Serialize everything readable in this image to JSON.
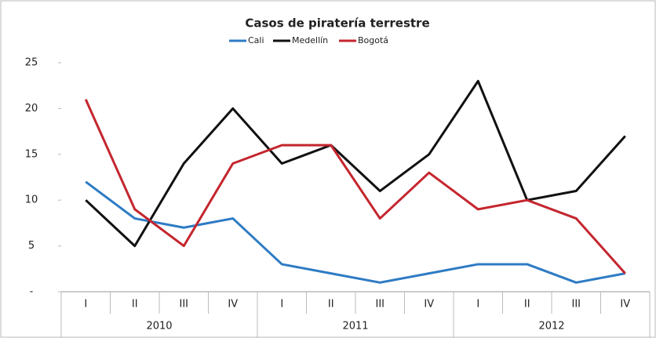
{
  "chart_data": {
    "type": "line",
    "title": "Casos de piratería  terrestre",
    "categories": [
      "I",
      "II",
      "III",
      "IV",
      "I",
      "II",
      "III",
      "IV",
      "I",
      "II",
      "III",
      "IV"
    ],
    "groups": [
      "2010",
      "2011",
      "2012"
    ],
    "series": [
      {
        "name": "Cali",
        "color": "#2e7bc4",
        "values": [
          12,
          8,
          7,
          8,
          3,
          2,
          1,
          2,
          3,
          3,
          1,
          2
        ]
      },
      {
        "name": "Medellín",
        "color": "#111111",
        "values": [
          10,
          5,
          14,
          20,
          14,
          16,
          11,
          15,
          23,
          10,
          11,
          17
        ]
      },
      {
        "name": "Bogotá",
        "color": "#c4262e",
        "values": [
          21,
          9,
          5,
          14,
          16,
          16,
          8,
          13,
          9,
          10,
          8,
          2
        ]
      }
    ],
    "ylim": [
      0,
      25
    ],
    "yticks": [
      {
        "value": 0,
        "label": "-"
      },
      5,
      10,
      15,
      20,
      25
    ]
  }
}
